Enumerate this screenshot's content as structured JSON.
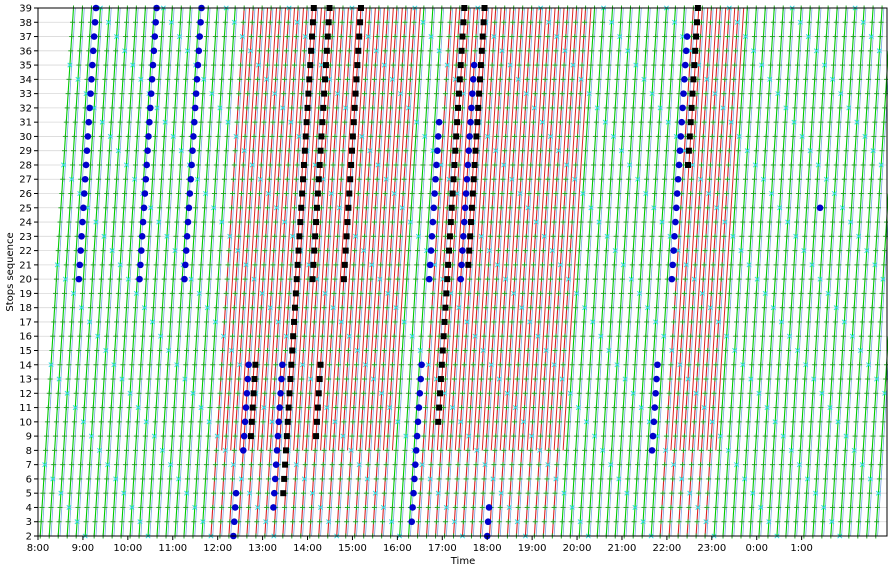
{
  "chart_data": {
    "type": "line",
    "title": "",
    "xlabel": "Time",
    "ylabel": "Stops sequence",
    "grid": "horizontal",
    "xlim": [
      8.0,
      26.9
    ],
    "ylim": [
      2,
      39
    ],
    "x_ticks": [
      {
        "value": 8,
        "label": "8:00"
      },
      {
        "value": 9,
        "label": "9:00"
      },
      {
        "value": 10,
        "label": "10:00"
      },
      {
        "value": 11,
        "label": "11:00"
      },
      {
        "value": 12,
        "label": "12:00"
      },
      {
        "value": 13,
        "label": "13:00"
      },
      {
        "value": 14,
        "label": "14:00"
      },
      {
        "value": 15,
        "label": "15:00"
      },
      {
        "value": 16,
        "label": "16:00"
      },
      {
        "value": 17,
        "label": "17:00"
      },
      {
        "value": 18,
        "label": "18:00"
      },
      {
        "value": 19,
        "label": "19:00"
      },
      {
        "value": 20,
        "label": "20:00"
      },
      {
        "value": 21,
        "label": "21:00"
      },
      {
        "value": 22,
        "label": "22:00"
      },
      {
        "value": 23,
        "label": "23:00"
      },
      {
        "value": 24,
        "label": "0:00"
      },
      {
        "value": 25,
        "label": "1:00"
      }
    ],
    "y_ticks": [
      2,
      3,
      4,
      5,
      6,
      7,
      8,
      9,
      10,
      11,
      12,
      13,
      14,
      15,
      16,
      17,
      18,
      19,
      20,
      21,
      22,
      23,
      24,
      25,
      26,
      27,
      28,
      29,
      30,
      31,
      32,
      33,
      34,
      35,
      36,
      37,
      38,
      39
    ],
    "colors": {
      "scheduled": "#00cc00",
      "delayed": "#dd2222",
      "realtime": "#7aa6e6",
      "scheduled_marker": "#22aa22",
      "realtime_marker": "#33dddd",
      "event_blue": "#0000cc",
      "event_black": "#000000",
      "grid": "#d8d8d8"
    },
    "trip_generation": {
      "first_departure": 8.05,
      "headway_hours": 0.2,
      "last_departure": 26.7,
      "minutes_per_stop": 1.2,
      "extra_delayed_shift_hours": 0.12
    },
    "delay_windows": [
      [
        11.8,
        15.8
      ],
      [
        16.3,
        19.5
      ],
      [
        21.7,
        23.0
      ]
    ],
    "event_series": [
      {
        "marker": "blue_circle",
        "trips": [
          [
            8.55,
            20,
            39
          ],
          [
            9.9,
            20,
            39
          ],
          [
            10.9,
            20,
            39
          ],
          [
            12.35,
            2,
            5
          ],
          [
            12.45,
            8,
            14
          ],
          [
            13.2,
            4,
            14
          ],
          [
            16.3,
            3,
            14
          ],
          [
            16.35,
            20,
            31
          ],
          [
            17.05,
            20,
            35
          ],
          [
            18.0,
            2,
            4
          ],
          [
            21.55,
            8,
            14
          ],
          [
            21.75,
            20,
            37
          ],
          [
            24.95,
            25,
            25
          ]
        ]
      },
      {
        "marker": "black_square",
        "trips": [
          [
            12.6,
            9,
            14
          ],
          [
            13.4,
            5,
            39
          ],
          [
            13.75,
            20,
            39
          ],
          [
            14.05,
            9,
            14
          ],
          [
            14.45,
            20,
            39
          ],
          [
            16.75,
            10,
            39
          ],
          [
            17.2,
            21,
            39
          ],
          [
            21.95,
            28,
            39
          ]
        ]
      }
    ]
  }
}
